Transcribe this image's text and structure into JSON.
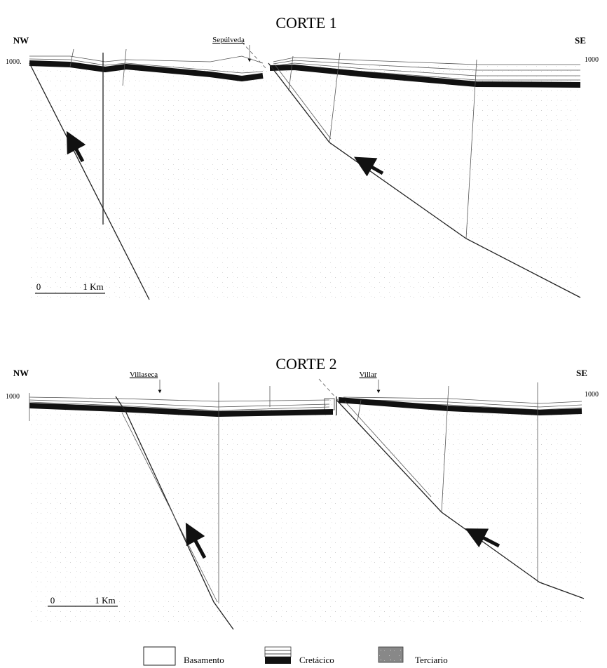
{
  "sections": [
    {
      "title": "CORTE 1",
      "left": "NW",
      "right": "SE",
      "left_elevation": "1000.",
      "right_elevation": "1000",
      "towns": [
        "Sepúlveda"
      ],
      "scale": [
        "0",
        "1 Km"
      ]
    },
    {
      "title": "CORTE 2",
      "left": "NW",
      "right": "SE",
      "left_elevation": "1000",
      "right_elevation": "1000",
      "towns": [
        "Villaseca",
        "Villar"
      ],
      "scale": [
        "0",
        "1 Km"
      ]
    }
  ],
  "legend": [
    "Basamento",
    "Cretácico",
    "Terciario"
  ]
}
